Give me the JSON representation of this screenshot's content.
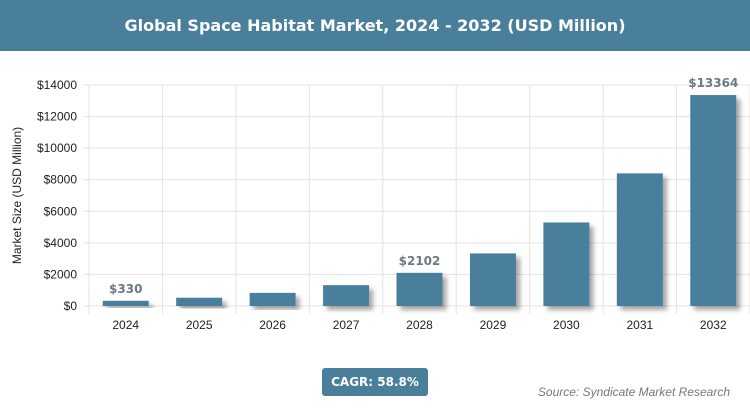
{
  "chart_data": {
    "type": "bar",
    "title": "Global Space Habitat Market, 2024 - 2032 (USD Million)",
    "xlabel": "",
    "ylabel": "Market Size (USD Million)",
    "categories": [
      "2024",
      "2025",
      "2026",
      "2027",
      "2028",
      "2029",
      "2030",
      "2031",
      "2032"
    ],
    "values": [
      330,
      524,
      832,
      1321,
      2102,
      3332,
      5291,
      8402,
      13364
    ],
    "data_labels": {
      "0": "$330",
      "4": "$2102",
      "8": "$13364"
    },
    "ylim": [
      0,
      14000
    ],
    "yticks": [
      0,
      2000,
      4000,
      6000,
      8000,
      10000,
      12000,
      14000
    ],
    "ytick_labels": [
      "$0",
      "$2000",
      "$4000",
      "$6000",
      "$8000",
      "$10000",
      "$12000",
      "$14000"
    ],
    "grid": true,
    "bar_color": "#4a7f9c",
    "header_color": "#4a7f9c"
  },
  "footer": {
    "cagr": "CAGR: 58.8%",
    "source": "Source: Syndicate Market Research"
  }
}
